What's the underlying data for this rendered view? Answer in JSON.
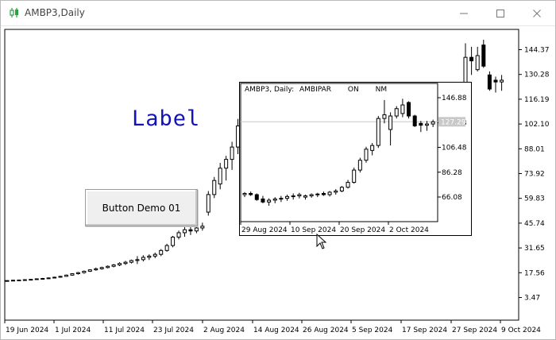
{
  "window": {
    "title": "AMBP3,Daily",
    "app_icon": "candlestick-icon",
    "controls": [
      "minimize-icon",
      "maximize-icon",
      "close-icon"
    ]
  },
  "label_object": {
    "text": "Label",
    "color": "#1414b4"
  },
  "button_object": {
    "text": "Button Demo 01"
  },
  "main_chart": {
    "price_labels": [
      "144.37",
      "130.28",
      "116.19",
      "102.10",
      "88.01",
      "73.92",
      "59.83",
      "45.74",
      "31.65",
      "17.56",
      "3.47"
    ],
    "date_labels": [
      "19 Jun 2024",
      "1 Jul 2024",
      "11 Jul 2024",
      "23 Jul 2024",
      "2 Aug 2024",
      "14 Aug 2024",
      "26 Aug 2024",
      "5 Sep 2024",
      "17 Sep 2024",
      "27 Sep 2024",
      "9 Oct 2024"
    ]
  },
  "inset_chart": {
    "header": {
      "symbol": "AMBP3, Daily:",
      "name": "AMBIPAR",
      "on": "ON",
      "nm": "NM"
    },
    "price_labels": [
      "146.88",
      "126.48",
      "106.48",
      "86.28",
      "66.08"
    ],
    "current_price": "127.29",
    "date_labels": [
      "29 Aug 2024",
      "10 Sep 2024",
      "20 Sep 2024",
      "2 Oct 2024"
    ]
  },
  "chart_data": [
    {
      "type": "candlestick",
      "title": "AMBP3,Daily",
      "ylim": [
        3.47,
        151
      ],
      "xlabel": "",
      "ylabel": "",
      "x_labels": [
        "19 Jun 2024",
        "1 Jul 2024",
        "11 Jul 2024",
        "23 Jul 2024",
        "2 Aug 2024",
        "14 Aug 2024",
        "26 Aug 2024",
        "5 Sep 2024",
        "17 Sep 2024",
        "27 Sep 2024",
        "9 Oct 2024"
      ],
      "y_ticks": [
        144.37,
        130.28,
        116.19,
        102.1,
        88.01,
        73.92,
        59.83,
        45.74,
        31.65,
        17.56,
        3.47
      ],
      "candles": [
        {
          "o": 13.0,
          "h": 13.3,
          "l": 12.8,
          "c": 13.1
        },
        {
          "o": 13.1,
          "h": 13.5,
          "l": 12.9,
          "c": 13.3
        },
        {
          "o": 13.3,
          "h": 13.6,
          "l": 13.0,
          "c": 13.4
        },
        {
          "o": 13.4,
          "h": 13.8,
          "l": 13.2,
          "c": 13.6
        },
        {
          "o": 13.6,
          "h": 14.0,
          "l": 13.4,
          "c": 13.8
        },
        {
          "o": 13.8,
          "h": 14.3,
          "l": 13.6,
          "c": 14.1
        },
        {
          "o": 14.1,
          "h": 14.6,
          "l": 13.8,
          "c": 14.3
        },
        {
          "o": 14.3,
          "h": 14.9,
          "l": 14.0,
          "c": 14.6
        },
        {
          "o": 14.6,
          "h": 15.3,
          "l": 14.3,
          "c": 15.0
        },
        {
          "o": 15.0,
          "h": 15.8,
          "l": 14.7,
          "c": 15.5
        },
        {
          "o": 15.5,
          "h": 16.5,
          "l": 15.3,
          "c": 16.2
        },
        {
          "o": 16.2,
          "h": 17.3,
          "l": 15.8,
          "c": 17.0
        },
        {
          "o": 17.0,
          "h": 18.0,
          "l": 16.5,
          "c": 17.6
        },
        {
          "o": 17.6,
          "h": 18.8,
          "l": 17.0,
          "c": 18.4
        },
        {
          "o": 18.4,
          "h": 19.5,
          "l": 18.0,
          "c": 19.2
        },
        {
          "o": 19.2,
          "h": 20.5,
          "l": 18.7,
          "c": 19.8
        },
        {
          "o": 19.8,
          "h": 21.0,
          "l": 19.3,
          "c": 20.5
        },
        {
          "o": 20.5,
          "h": 21.7,
          "l": 20.0,
          "c": 21.2
        },
        {
          "o": 21.2,
          "h": 22.5,
          "l": 20.6,
          "c": 22.0
        },
        {
          "o": 22.0,
          "h": 23.5,
          "l": 21.3,
          "c": 22.8
        },
        {
          "o": 22.8,
          "h": 24.3,
          "l": 22.0,
          "c": 23.5
        },
        {
          "o": 23.5,
          "h": 25.0,
          "l": 22.8,
          "c": 24.5
        },
        {
          "o": 24.5,
          "h": 27.0,
          "l": 22.5,
          "c": 25.0
        },
        {
          "o": 25.0,
          "h": 27.5,
          "l": 24.0,
          "c": 26.3
        },
        {
          "o": 26.3,
          "h": 28.0,
          "l": 24.8,
          "c": 27.0
        },
        {
          "o": 27.0,
          "h": 29.0,
          "l": 25.8,
          "c": 28.0
        },
        {
          "o": 28.0,
          "h": 31.0,
          "l": 27.0,
          "c": 30.2
        },
        {
          "o": 30.2,
          "h": 34.0,
          "l": 29.5,
          "c": 33.0
        },
        {
          "o": 33.0,
          "h": 38.5,
          "l": 32.0,
          "c": 37.8
        },
        {
          "o": 37.8,
          "h": 41.5,
          "l": 36.5,
          "c": 40.3
        },
        {
          "o": 40.3,
          "h": 45.0,
          "l": 38.0,
          "c": 42.0
        },
        {
          "o": 42.0,
          "h": 46.5,
          "l": 39.0,
          "c": 41.3
        },
        {
          "o": 41.3,
          "h": 45.0,
          "l": 40.0,
          "c": 43.0
        },
        {
          "o": 43.0,
          "h": 46.0,
          "l": 41.5,
          "c": 44.0
        },
        {
          "o": 52.0,
          "h": 64.0,
          "l": 50.0,
          "c": 62.0
        },
        {
          "o": 62.0,
          "h": 72.0,
          "l": 60.0,
          "c": 70.0
        },
        {
          "o": 68.0,
          "h": 80.0,
          "l": 65.0,
          "c": 77.0
        },
        {
          "o": 77.0,
          "h": 84.0,
          "l": 70.0,
          "c": 82.0
        },
        {
          "o": 82.0,
          "h": 92.0,
          "l": 76.0,
          "c": 89.0
        },
        {
          "o": 89.0,
          "h": 105.0,
          "l": 85.0,
          "c": 101.0
        }
      ]
    },
    {
      "type": "candlestick",
      "title": "AMBP3, Daily: AMBIPAR",
      "ylim": [
        56.0,
        156.0
      ],
      "xlabel": "",
      "ylabel": "",
      "x_labels": [
        "29 Aug 2024",
        "10 Sep 2024",
        "20 Sep 2024",
        "2 Oct 2024"
      ],
      "y_ticks": [
        146.88,
        126.48,
        106.48,
        86.28,
        66.08
      ],
      "current_price": 127.29,
      "candles": [
        {
          "o": 68.0,
          "h": 70.0,
          "l": 66.0,
          "c": 69.0
        },
        {
          "o": 69.0,
          "h": 70.5,
          "l": 67.0,
          "c": 68.0
        },
        {
          "o": 68.0,
          "h": 69.0,
          "l": 63.0,
          "c": 64.0
        },
        {
          "o": 64.5,
          "h": 67.0,
          "l": 61.0,
          "c": 62.0
        },
        {
          "o": 62.0,
          "h": 65.0,
          "l": 59.0,
          "c": 63.5
        },
        {
          "o": 63.5,
          "h": 66.0,
          "l": 61.0,
          "c": 64.5
        },
        {
          "o": 64.5,
          "h": 67.0,
          "l": 62.0,
          "c": 65.0
        },
        {
          "o": 65.0,
          "h": 68.0,
          "l": 63.0,
          "c": 66.5
        },
        {
          "o": 66.5,
          "h": 69.0,
          "l": 64.0,
          "c": 67.0
        },
        {
          "o": 67.0,
          "h": 69.5,
          "l": 65.0,
          "c": 68.0
        },
        {
          "o": 66.0,
          "h": 68.0,
          "l": 64.0,
          "c": 67.0
        },
        {
          "o": 67.0,
          "h": 69.0,
          "l": 65.5,
          "c": 68.0
        },
        {
          "o": 68.0,
          "h": 69.5,
          "l": 66.0,
          "c": 68.5
        },
        {
          "o": 69.0,
          "h": 70.5,
          "l": 67.0,
          "c": 68.0
        },
        {
          "o": 68.0,
          "h": 71.0,
          "l": 66.5,
          "c": 70.0
        },
        {
          "o": 70.0,
          "h": 72.5,
          "l": 68.0,
          "c": 71.0
        },
        {
          "o": 71.0,
          "h": 75.0,
          "l": 70.0,
          "c": 74.0
        },
        {
          "o": 74.0,
          "h": 80.0,
          "l": 73.0,
          "c": 78.0
        },
        {
          "o": 78.0,
          "h": 90.0,
          "l": 77.0,
          "c": 88.0
        },
        {
          "o": 88.0,
          "h": 98.0,
          "l": 86.0,
          "c": 96.0
        },
        {
          "o": 96.0,
          "h": 107.0,
          "l": 94.0,
          "c": 105.0
        },
        {
          "o": 104.0,
          "h": 110.0,
          "l": 100.0,
          "c": 108.0
        },
        {
          "o": 108.0,
          "h": 132.0,
          "l": 106.0,
          "c": 130.0
        },
        {
          "o": 130.0,
          "h": 145.0,
          "l": 126.0,
          "c": 133.0
        },
        {
          "o": 121.0,
          "h": 135.0,
          "l": 108.0,
          "c": 132.0
        },
        {
          "o": 132.0,
          "h": 140.0,
          "l": 130.0,
          "c": 138.0
        },
        {
          "o": 134.0,
          "h": 146.0,
          "l": 131.0,
          "c": 141.0
        },
        {
          "o": 143.0,
          "h": 144.0,
          "l": 130.0,
          "c": 132.0
        },
        {
          "o": 132.0,
          "h": 133.0,
          "l": 123.0,
          "c": 124.0
        },
        {
          "o": 126.0,
          "h": 128.0,
          "l": 119.0,
          "c": 124.5
        },
        {
          "o": 124.5,
          "h": 128.0,
          "l": 120.0,
          "c": 125.5
        },
        {
          "o": 125.5,
          "h": 129.0,
          "l": 123.0,
          "c": 127.29
        }
      ]
    }
  ]
}
